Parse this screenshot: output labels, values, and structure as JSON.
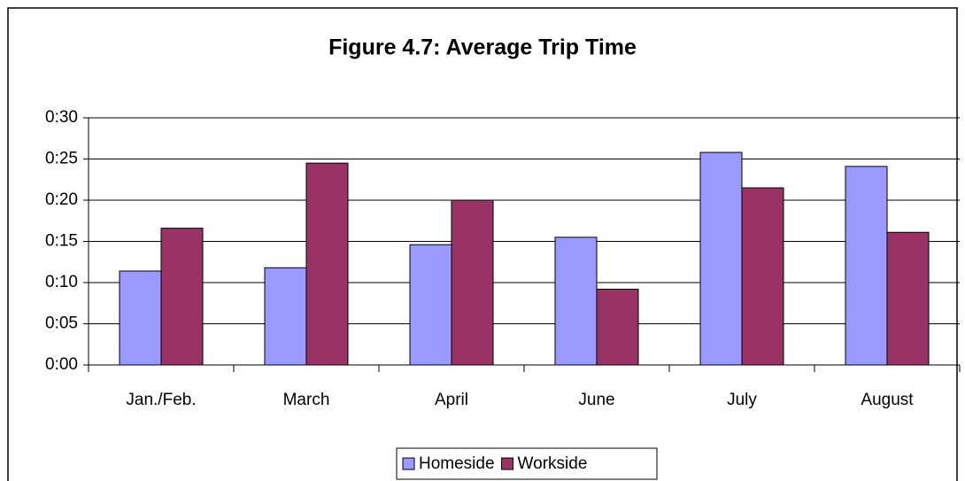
{
  "chart_data": {
    "type": "bar",
    "title": "Figure 4.7: Average Trip Time",
    "categories": [
      "Jan./Feb.",
      "March",
      "April",
      "June",
      "July",
      "August"
    ],
    "series": [
      {
        "name": "Homeside",
        "color": "#9999ff",
        "values": [
          11.4,
          11.8,
          14.6,
          15.5,
          25.8,
          24.1
        ]
      },
      {
        "name": "Workside",
        "color": "#993366",
        "values": [
          16.6,
          24.5,
          20,
          9.2,
          21.5,
          16.1
        ]
      }
    ],
    "ylim": [
      0,
      30
    ],
    "yticks": [
      {
        "value": 0,
        "label": "0:00"
      },
      {
        "value": 5,
        "label": "0:05"
      },
      {
        "value": 10,
        "label": "0:10"
      },
      {
        "value": 15,
        "label": "0:15"
      },
      {
        "value": 20,
        "label": "0:20"
      },
      {
        "value": 25,
        "label": "0:25"
      },
      {
        "value": 30,
        "label": "0:30"
      }
    ],
    "grid": true,
    "legend": "bottom"
  }
}
